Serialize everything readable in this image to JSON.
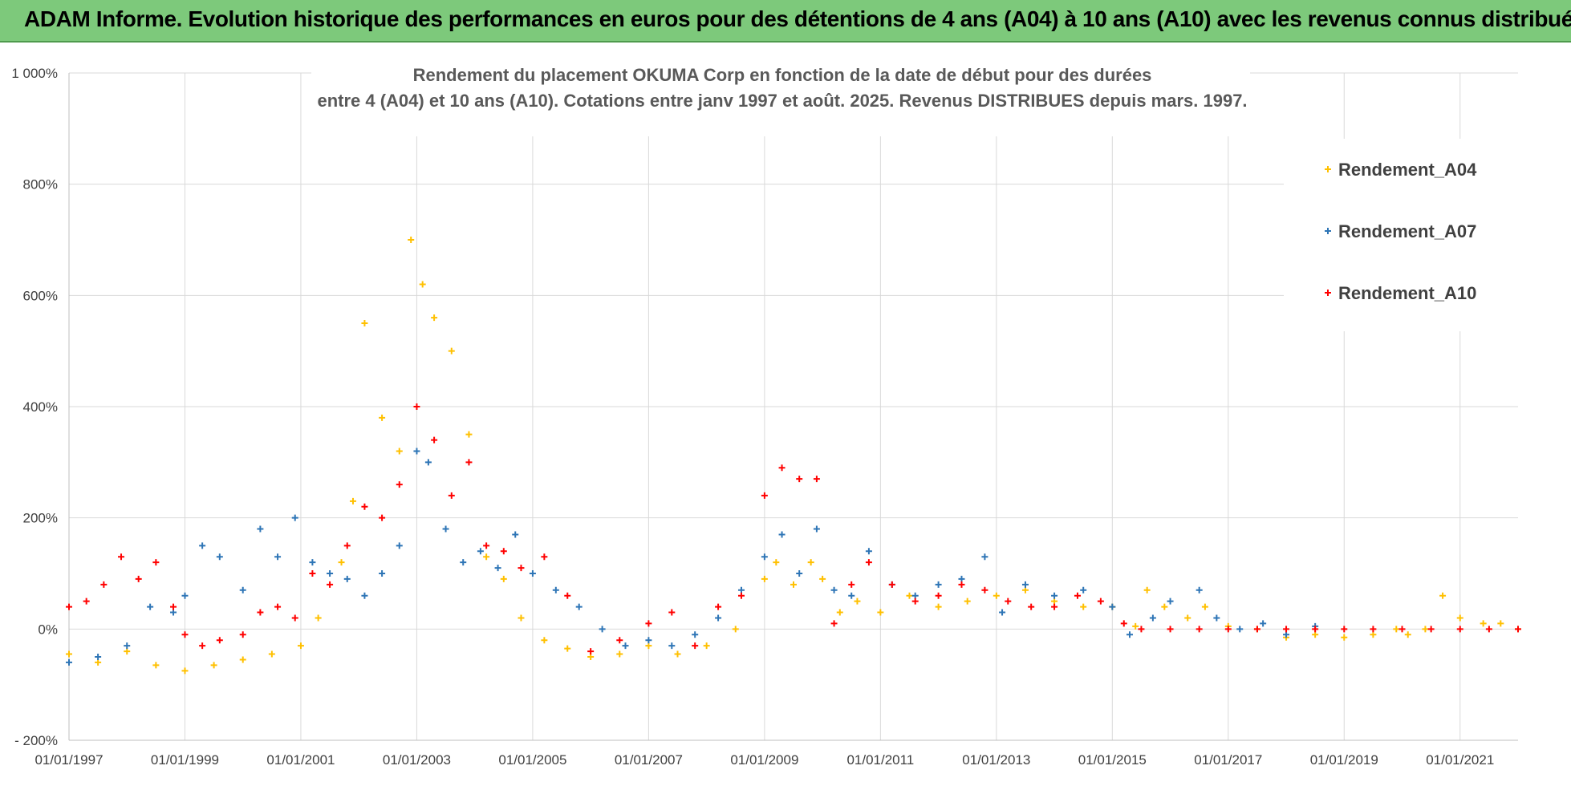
{
  "banner": {
    "title": "ADAM Informe. Evolution historique des performances en euros pour des détentions de 4 ans (A04) à 10 ans (A10) avec les revenus connus distribués"
  },
  "colors": {
    "banner_bg": "#7dc97b",
    "grid": "#d9d9d9",
    "A04": "#ffc000",
    "A07": "#2e75b6",
    "A10": "#ff0000"
  },
  "chart_data": {
    "type": "scatter",
    "title_lines": [
      "Rendement du placement OKUMA Corp en fonction de la date de début pour des durées",
      "entre 4 (A04) et 10 ans (A10). Cotations entre janv 1997 et août. 2025. Revenus DISTRIBUES depuis mars. 1997."
    ],
    "xlabel": "",
    "ylabel": "",
    "ylim": [
      -200,
      1000
    ],
    "xlim": [
      "01/01/1997",
      "01/01/2022"
    ],
    "y_ticks": [
      -200,
      0,
      200,
      400,
      600,
      800,
      1000
    ],
    "y_tick_labels": [
      "- 200%",
      "0%",
      "200%",
      "400%",
      "600%",
      "800%",
      "1 000%"
    ],
    "x_tick_labels": [
      "01/01/1997",
      "01/01/1999",
      "01/01/2001",
      "01/01/2003",
      "01/01/2005",
      "01/01/2007",
      "01/01/2009",
      "01/01/2011",
      "01/01/2013",
      "01/01/2015",
      "01/01/2017",
      "01/01/2019",
      "01/01/2021"
    ],
    "grid": true,
    "legend_position": "top-right",
    "marker": "+",
    "series": [
      {
        "name": "Rendement_A04",
        "color": "#ffc000",
        "x": [
          1997.0,
          1997.5,
          1998.0,
          1998.5,
          1999.0,
          1999.5,
          2000.0,
          2000.5,
          2001.0,
          2001.3,
          2001.7,
          2001.9,
          2002.1,
          2002.4,
          2002.7,
          2002.9,
          2003.1,
          2003.3,
          2003.6,
          2003.9,
          2004.2,
          2004.5,
          2004.8,
          2005.2,
          2005.6,
          2006.0,
          2006.5,
          2007.0,
          2007.5,
          2008.0,
          2008.5,
          2009.0,
          2009.2,
          2009.5,
          2009.8,
          2010.0,
          2010.3,
          2010.6,
          2011.0,
          2011.5,
          2012.0,
          2012.5,
          2013.0,
          2013.5,
          2014.0,
          2014.5,
          2015.0,
          2015.4,
          2015.6,
          2015.9,
          2016.3,
          2016.6,
          2017.0,
          2017.5,
          2018.0,
          2018.5,
          2019.0,
          2019.5,
          2019.9,
          2020.1,
          2020.4,
          2020.7,
          2021.0,
          2021.4,
          2021.7,
          2022.0
        ],
        "y": [
          -45,
          -60,
          -40,
          -65,
          -75,
          -65,
          -55,
          -45,
          -30,
          20,
          120,
          230,
          550,
          380,
          320,
          700,
          620,
          560,
          500,
          350,
          130,
          90,
          20,
          -20,
          -35,
          -50,
          -45,
          -30,
          -45,
          -30,
          0,
          90,
          120,
          80,
          120,
          90,
          30,
          50,
          30,
          60,
          40,
          50,
          60,
          70,
          50,
          40,
          40,
          5,
          70,
          40,
          20,
          40,
          5,
          0,
          -15,
          -10,
          -15,
          -10,
          0,
          -10,
          0,
          60,
          20,
          10,
          10,
          0
        ]
      },
      {
        "name": "Rendement_A07",
        "color": "#2e75b6",
        "x": [
          1997.0,
          1997.5,
          1998.0,
          1998.4,
          1998.8,
          1999.0,
          1999.3,
          1999.6,
          2000.0,
          2000.3,
          2000.6,
          2000.9,
          2001.2,
          2001.5,
          2001.8,
          2002.1,
          2002.4,
          2002.7,
          2003.0,
          2003.2,
          2003.5,
          2003.8,
          2004.1,
          2004.4,
          2004.7,
          2005.0,
          2005.4,
          2005.8,
          2006.2,
          2006.6,
          2007.0,
          2007.4,
          2007.8,
          2008.2,
          2008.6,
          2009.0,
          2009.3,
          2009.6,
          2009.9,
          2010.2,
          2010.5,
          2010.8,
          2011.2,
          2011.6,
          2012.0,
          2012.4,
          2012.8,
          2013.1,
          2013.5,
          2014.0,
          2014.5,
          2015.0,
          2015.3,
          2015.7,
          2016.0,
          2016.5,
          2016.8,
          2017.2,
          2017.6,
          2018.0,
          2018.5
        ],
        "y": [
          -60,
          -50,
          -30,
          40,
          30,
          60,
          150,
          130,
          70,
          180,
          130,
          200,
          120,
          100,
          90,
          60,
          100,
          150,
          320,
          300,
          180,
          120,
          140,
          110,
          170,
          100,
          70,
          40,
          0,
          -30,
          -20,
          -30,
          -10,
          20,
          70,
          130,
          170,
          100,
          180,
          70,
          60,
          140,
          80,
          60,
          80,
          90,
          130,
          30,
          80,
          60,
          70,
          40,
          -10,
          20,
          50,
          70,
          20,
          0,
          10,
          -10,
          5
        ]
      },
      {
        "name": "Rendement_A10",
        "color": "#ff0000",
        "x": [
          1997.0,
          1997.3,
          1997.6,
          1997.9,
          1998.2,
          1998.5,
          1998.8,
          1999.0,
          1999.3,
          1999.6,
          2000.0,
          2000.3,
          2000.6,
          2000.9,
          2001.2,
          2001.5,
          2001.8,
          2002.1,
          2002.4,
          2002.7,
          2003.0,
          2003.3,
          2003.6,
          2003.9,
          2004.2,
          2004.5,
          2004.8,
          2005.2,
          2005.6,
          2006.0,
          2006.5,
          2007.0,
          2007.4,
          2007.8,
          2008.2,
          2008.6,
          2009.0,
          2009.3,
          2009.6,
          2009.9,
          2010.2,
          2010.5,
          2010.8,
          2011.2,
          2011.6,
          2012.0,
          2012.4,
          2012.8,
          2013.2,
          2013.6,
          2014.0,
          2014.4,
          2014.8,
          2015.2,
          2015.5,
          2016.0,
          2016.5,
          2017.0,
          2017.5,
          2018.0,
          2018.5,
          2019.0,
          2019.5,
          2020.0,
          2020.5,
          2021.0,
          2021.5,
          2022.0
        ],
        "y": [
          40,
          50,
          80,
          130,
          90,
          120,
          40,
          -10,
          -30,
          -20,
          -10,
          30,
          40,
          20,
          100,
          80,
          150,
          220,
          200,
          260,
          400,
          340,
          240,
          300,
          150,
          140,
          110,
          130,
          60,
          -40,
          -20,
          10,
          30,
          -30,
          40,
          60,
          240,
          290,
          270,
          270,
          10,
          80,
          120,
          80,
          50,
          60,
          80,
          70,
          50,
          40,
          40,
          60,
          50,
          10,
          0,
          0,
          0,
          0,
          0,
          0,
          0,
          0,
          0,
          0,
          0,
          0,
          0,
          0
        ]
      }
    ]
  }
}
